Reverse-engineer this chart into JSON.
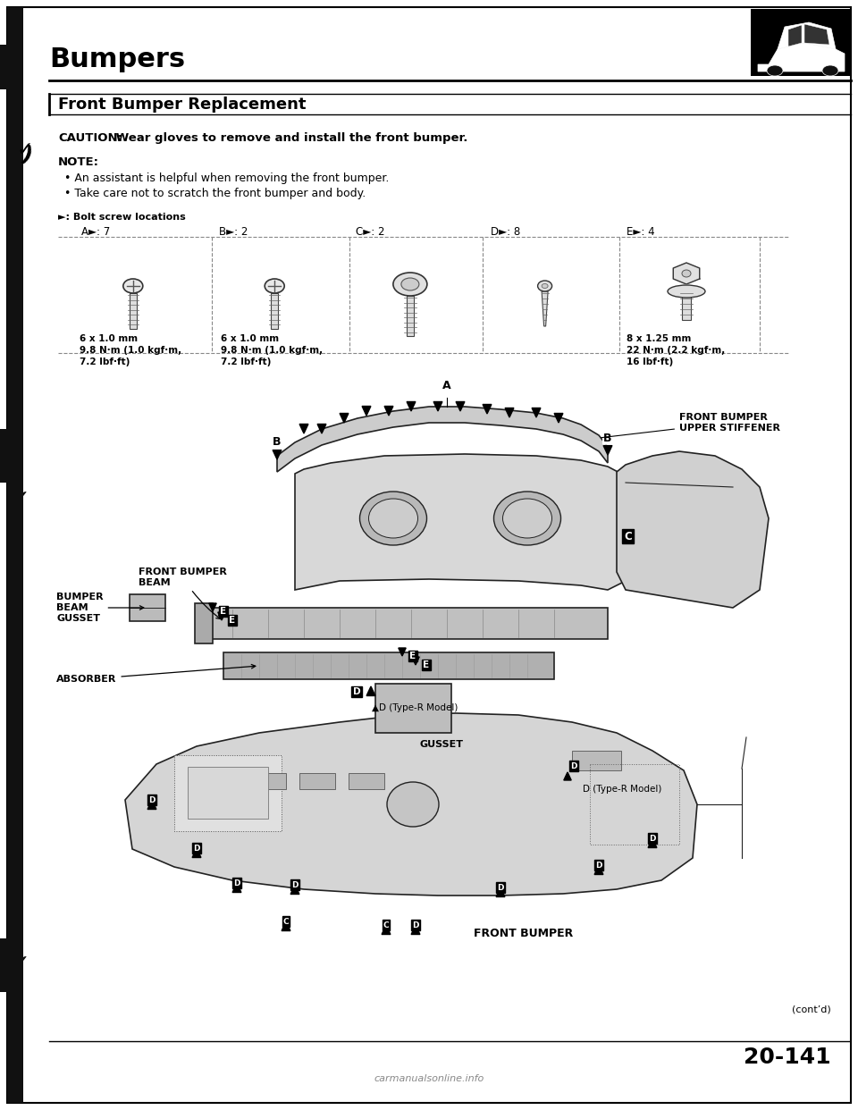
{
  "page_bg": "#ffffff",
  "border_color": "#000000",
  "title": "Bumpers",
  "section_title": "Front Bumper Replacement",
  "caution_label": "CAUTION:",
  "caution_text": " Wear gloves to remove and install the front bumper.",
  "note_label": "NOTE:",
  "note_bullets": [
    "An assistant is helpful when removing the front bumper.",
    "Take care not to scratch the front bumper and body."
  ],
  "bolt_label": "►: Bolt screw locations",
  "bolt_cols": [
    {
      "label": "A►: 7",
      "xf": 0.095
    },
    {
      "label": "B►: 2",
      "xf": 0.255
    },
    {
      "label": "C►: 2",
      "xf": 0.415
    },
    {
      "label": "D►: 8",
      "xf": 0.572
    },
    {
      "label": "E►: 4",
      "xf": 0.73
    }
  ],
  "screw_specs": [
    {
      "xf": 0.093,
      "lines": [
        "6 x 1.0 mm",
        "9.8 N·m (1.0 kgf·m,",
        "7.2 lbf·ft)"
      ]
    },
    {
      "xf": 0.257,
      "lines": [
        "6 x 1.0 mm",
        "9.8 N·m (1.0 kgf·m,",
        "7.2 lbf·ft)"
      ]
    },
    {
      "xf": 0.73,
      "lines": [
        "8 x 1.25 mm",
        "22 N·m (2.2 kgf·m,",
        "16 lbf·ft)"
      ]
    }
  ],
  "page_num": "20-141",
  "footer": "carmanualsonline.info",
  "contd": "(cont’d)",
  "car_icon_bg": "#000000",
  "left_margin_color": "#888888"
}
